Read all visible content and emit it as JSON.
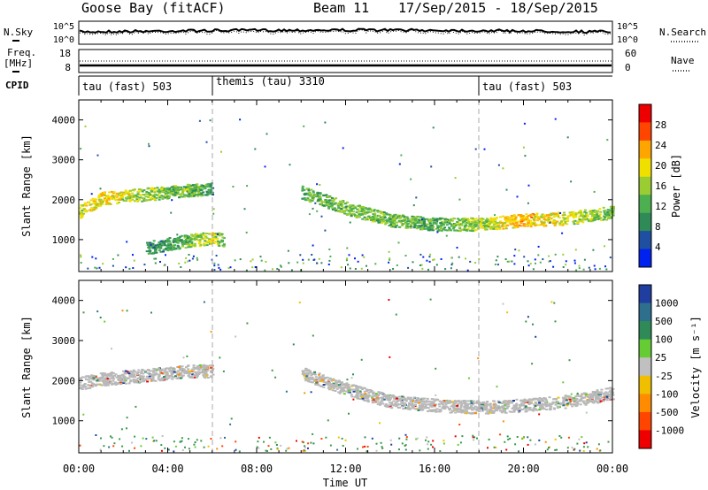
{
  "header": {
    "station": "Goose Bay (fitACF)",
    "beam": "Beam 11",
    "date_range": "17/Sep/2015 - 18/Sep/2015"
  },
  "noise_panel": {
    "left_label": "N.Sky",
    "right_label": "N.Search",
    "left_ticks": [
      "10^5",
      "10^0"
    ],
    "right_ticks": [
      "10^5",
      "10^0"
    ]
  },
  "freq_panel": {
    "left_label_1": "Freq.",
    "left_label_2": "[MHz]",
    "right_label": "Nave",
    "left_ticks": [
      "18",
      "8"
    ],
    "right_ticks": [
      "60",
      "0"
    ]
  },
  "cpid": {
    "label": "CPID",
    "segments": [
      {
        "name": "tau (fast) 503",
        "start_hour": 0
      },
      {
        "name": "themis (tau) 3310",
        "start_hour": 6
      },
      {
        "name": "tau (fast) 503",
        "start_hour": 18
      }
    ]
  },
  "colors": {
    "power": [
      "#0022ee",
      "#1f4fa0",
      "#2e8b57",
      "#4caf50",
      "#9acd32",
      "#f0e000",
      "#ffa500",
      "#ff4500",
      "#ee0000"
    ],
    "velocity": [
      "#1f3ea0",
      "#2e6f8e",
      "#2e8b57",
      "#66cc33",
      "#c0c0c0",
      "#f0c000",
      "#ff8c00",
      "#ff4500",
      "#ee0000"
    ],
    "ground": "#b8b8b8",
    "scatter_green": "#3a9a4a"
  },
  "chart_data": [
    {
      "type": "heatmap",
      "panel": "power",
      "ylabel": "Slant Range [km]",
      "xlabel": "Time UT",
      "xlim_hours": [
        0,
        24
      ],
      "x_ticks": [
        "00:00",
        "04:00",
        "08:00",
        "12:00",
        "16:00",
        "20:00",
        "00:00"
      ],
      "ylim": [
        200,
        4500
      ],
      "y_ticks": [
        1000,
        2000,
        3000,
        4000
      ],
      "colorbar": {
        "label": "Power [dB]",
        "ticks": [
          "28",
          "24",
          "20",
          "16",
          "12",
          "8",
          "4"
        ]
      },
      "echo_bands": [
        {
          "t": [
            0,
            1,
            2,
            3,
            4,
            5,
            6
          ],
          "range_km": [
            1700,
            2050,
            2100,
            2150,
            2200,
            2250,
            2300
          ],
          "power_db": [
            16,
            18,
            16,
            14,
            12,
            12,
            8
          ]
        },
        {
          "t": [
            3,
            4,
            5,
            6,
            6.5
          ],
          "range_km": [
            800,
            900,
            1000,
            1050,
            1000
          ],
          "power_db": [
            8,
            8,
            12,
            16,
            12
          ]
        },
        {
          "t": [
            10,
            12,
            14,
            16,
            18,
            20,
            22,
            24
          ],
          "range_km": [
            2200,
            1800,
            1500,
            1400,
            1400,
            1500,
            1550,
            1700
          ],
          "power_db": [
            10,
            12,
            12,
            10,
            14,
            20,
            16,
            12
          ]
        }
      ]
    },
    {
      "type": "heatmap",
      "panel": "velocity",
      "ylabel": "Slant Range [km]",
      "xlabel": "Time UT",
      "xlim_hours": [
        0,
        24
      ],
      "x_ticks": [
        "00:00",
        "04:00",
        "08:00",
        "12:00",
        "16:00",
        "20:00",
        "00:00"
      ],
      "ylim": [
        200,
        4500
      ],
      "y_ticks": [
        1000,
        2000,
        3000,
        4000
      ],
      "colorbar": {
        "label": "Velocity [m s⁻¹]",
        "ticks": [
          "1000",
          "500",
          "100",
          "25",
          "-25",
          "-100",
          "-500",
          "-1000"
        ]
      },
      "echo_bands": [
        {
          "t": [
            0,
            1,
            2,
            3,
            4,
            5,
            6
          ],
          "range_km": [
            1950,
            2050,
            2100,
            2150,
            2200,
            2250,
            2250
          ],
          "velocity": [
            0,
            0,
            0,
            0,
            0,
            0,
            0
          ]
        },
        {
          "t": [
            10,
            12,
            14,
            16,
            18,
            20,
            22,
            24
          ],
          "range_km": [
            2200,
            1800,
            1500,
            1400,
            1350,
            1400,
            1500,
            1700
          ],
          "velocity": [
            0,
            0,
            0,
            0,
            0,
            0,
            0,
            0
          ]
        }
      ]
    }
  ]
}
